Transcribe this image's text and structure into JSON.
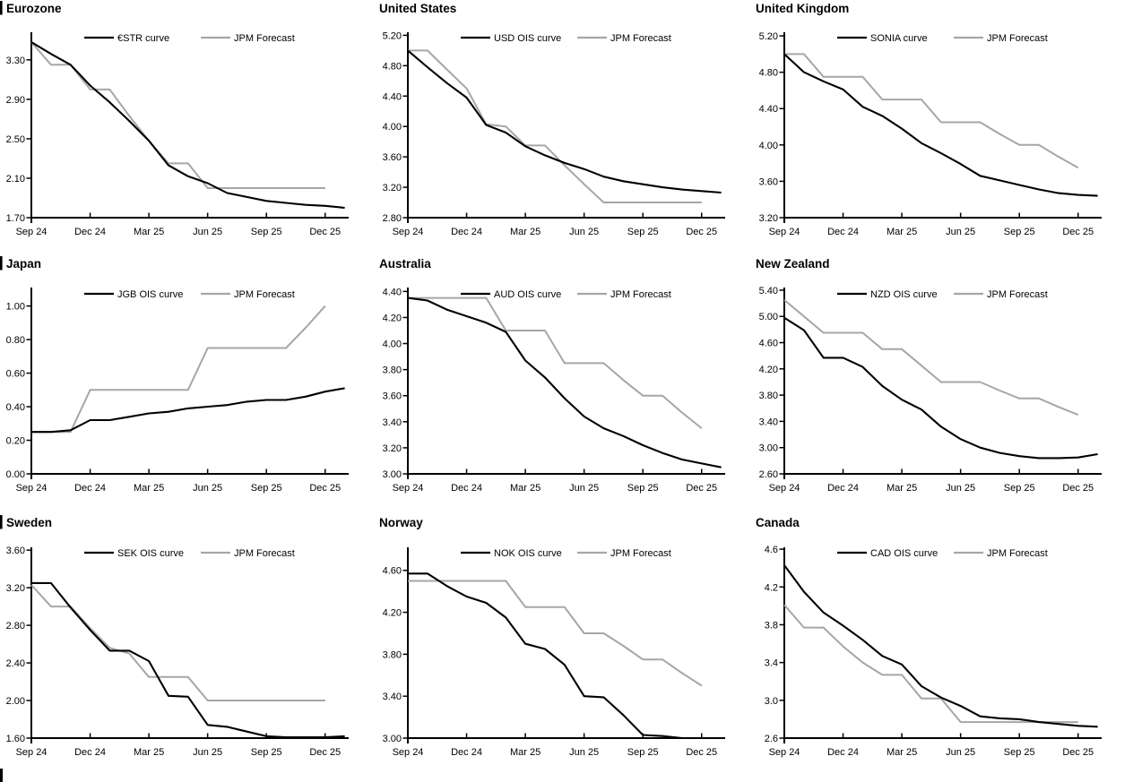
{
  "page": {
    "background": "#ffffff"
  },
  "colors": {
    "line_primary": "#000000",
    "line_forecast": "#a6a6a6",
    "text": "#000000"
  },
  "forecast_label": "JPM Forecast",
  "x_axis_note": "monthly points from Sep 2024 to Dec 2025 plus one extension month",
  "chart_data": [
    {
      "type": "line",
      "title": "Eurozone",
      "left_bar": true,
      "x_ticks": [
        "Sep 24",
        "Dec 24",
        "Mar 25",
        "Jun 25",
        "Sep 25",
        "Dec 25"
      ],
      "y_ticks": [
        "3.30",
        "2.90",
        "2.50",
        "2.10",
        "1.70"
      ],
      "y_tick_values": [
        3.3,
        2.9,
        2.5,
        2.1,
        1.7
      ],
      "ylim": [
        1.7,
        3.58
      ],
      "grid": false,
      "legend_position": "top-inside",
      "series": [
        {
          "name": "€STR curve",
          "color": "#000000",
          "values": [
            3.48,
            3.36,
            3.25,
            3.04,
            2.87,
            2.68,
            2.48,
            2.23,
            2.12,
            2.05,
            1.95,
            1.91,
            1.87,
            1.85,
            1.83,
            1.82,
            1.8
          ]
        },
        {
          "name": "JPM Forecast",
          "color": "#a6a6a6",
          "values": [
            3.48,
            3.25,
            3.25,
            3.0,
            3.0,
            2.73,
            2.48,
            2.25,
            2.25,
            2.0,
            2.0,
            2.0,
            2.0,
            2.0,
            2.0,
            2.0
          ]
        }
      ]
    },
    {
      "type": "line",
      "title": "United States",
      "left_bar": false,
      "x_ticks": [
        "Sep 24",
        "Dec 24",
        "Mar 25",
        "Jun 25",
        "Sep 25",
        "Dec 25"
      ],
      "y_ticks": [
        "5.20",
        "4.80",
        "4.40",
        "4.00",
        "3.60",
        "3.20",
        "2.80"
      ],
      "y_tick_values": [
        5.2,
        4.8,
        4.4,
        4.0,
        3.6,
        3.2,
        2.8
      ],
      "ylim": [
        2.8,
        5.24
      ],
      "grid": false,
      "legend_position": "top-inside",
      "series": [
        {
          "name": "USD OIS curve",
          "color": "#000000",
          "values": [
            5.0,
            4.78,
            4.57,
            4.38,
            4.02,
            3.92,
            3.74,
            3.62,
            3.52,
            3.44,
            3.34,
            3.28,
            3.24,
            3.2,
            3.17,
            3.15,
            3.13
          ]
        },
        {
          "name": "JPM Forecast",
          "color": "#a6a6a6",
          "values": [
            5.0,
            5.0,
            4.75,
            4.5,
            4.03,
            4.0,
            3.75,
            3.75,
            3.49,
            3.24,
            3.0,
            3.0,
            3.0,
            3.0,
            3.0,
            3.0
          ]
        }
      ]
    },
    {
      "type": "line",
      "title": "United Kingdom",
      "left_bar": false,
      "x_ticks": [
        "Sep 24",
        "Dec 24",
        "Mar 25",
        "Jun 25",
        "Sep 25",
        "Dec 25"
      ],
      "y_ticks": [
        "5.20",
        "4.80",
        "4.40",
        "4.00",
        "3.60",
        "3.20"
      ],
      "y_tick_values": [
        5.2,
        4.8,
        4.4,
        4.0,
        3.6,
        3.2
      ],
      "ylim": [
        3.2,
        5.24
      ],
      "grid": false,
      "legend_position": "top-inside",
      "series": [
        {
          "name": "SONIA curve",
          "color": "#000000",
          "values": [
            5.0,
            4.8,
            4.7,
            4.61,
            4.42,
            4.32,
            4.18,
            4.02,
            3.91,
            3.79,
            3.66,
            3.61,
            3.56,
            3.51,
            3.47,
            3.45,
            3.44
          ]
        },
        {
          "name": "JPM Forecast",
          "color": "#a6a6a6",
          "values": [
            5.0,
            5.0,
            4.75,
            4.75,
            4.75,
            4.5,
            4.5,
            4.5,
            4.25,
            4.25,
            4.25,
            4.12,
            4.0,
            4.0,
            3.87,
            3.75
          ]
        }
      ]
    },
    {
      "type": "line",
      "title": "Japan",
      "left_bar": true,
      "x_ticks": [
        "Sep 24",
        "Dec 24",
        "Mar 25",
        "Jun 25",
        "Sep 25",
        "Dec 25"
      ],
      "y_ticks": [
        "1.00",
        "0.80",
        "0.60",
        "0.40",
        "0.20",
        "0.00"
      ],
      "y_tick_values": [
        1.0,
        0.8,
        0.6,
        0.4,
        0.2,
        0.0
      ],
      "ylim": [
        0.0,
        1.11
      ],
      "grid": false,
      "legend_position": "top-inside",
      "series": [
        {
          "name": "JGB OIS curve",
          "color": "#000000",
          "values": [
            0.25,
            0.25,
            0.26,
            0.32,
            0.32,
            0.34,
            0.36,
            0.37,
            0.39,
            0.4,
            0.41,
            0.43,
            0.44,
            0.44,
            0.46,
            0.49,
            0.51
          ]
        },
        {
          "name": "JPM Forecast",
          "color": "#a6a6a6",
          "values": [
            0.25,
            0.25,
            0.25,
            0.5,
            0.5,
            0.5,
            0.5,
            0.5,
            0.5,
            0.75,
            0.75,
            0.75,
            0.75,
            0.75,
            0.87,
            1.0
          ]
        }
      ]
    },
    {
      "type": "line",
      "title": "Australia",
      "left_bar": false,
      "x_ticks": [
        "Sep 24",
        "Dec 24",
        "Mar 25",
        "Jun 25",
        "Sep 25",
        "Dec 25"
      ],
      "y_ticks": [
        "4.40",
        "4.20",
        "4.00",
        "3.80",
        "3.60",
        "3.40",
        "3.20",
        "3.00"
      ],
      "y_tick_values": [
        4.4,
        4.2,
        4.0,
        3.8,
        3.6,
        3.4,
        3.2,
        3.0
      ],
      "ylim": [
        3.0,
        4.43
      ],
      "grid": false,
      "legend_position": "top-inside",
      "series": [
        {
          "name": "AUD OIS curve",
          "color": "#000000",
          "values": [
            4.35,
            4.33,
            4.26,
            4.21,
            4.16,
            4.09,
            3.87,
            3.74,
            3.58,
            3.44,
            3.35,
            3.29,
            3.22,
            3.16,
            3.11,
            3.08,
            3.05
          ]
        },
        {
          "name": "JPM Forecast",
          "color": "#a6a6a6",
          "values": [
            4.35,
            4.35,
            4.35,
            4.35,
            4.35,
            4.1,
            4.1,
            4.1,
            3.85,
            3.85,
            3.85,
            3.72,
            3.6,
            3.6,
            3.47,
            3.35
          ]
        }
      ]
    },
    {
      "type": "line",
      "title": "New Zealand",
      "left_bar": false,
      "x_ticks": [
        "Sep 24",
        "Dec 24",
        "Mar 25",
        "Jun 25",
        "Sep 25",
        "Dec 25"
      ],
      "y_ticks": [
        "5.40",
        "5.00",
        "4.60",
        "4.20",
        "3.80",
        "3.40",
        "3.00",
        "2.60"
      ],
      "y_tick_values": [
        5.4,
        5.0,
        4.6,
        4.2,
        3.8,
        3.4,
        3.0,
        2.6
      ],
      "ylim": [
        2.6,
        5.44
      ],
      "grid": false,
      "legend_position": "top-inside",
      "series": [
        {
          "name": "NZD OIS curve",
          "color": "#000000",
          "values": [
            4.98,
            4.79,
            4.37,
            4.37,
            4.23,
            3.94,
            3.73,
            3.58,
            3.32,
            3.13,
            3.0,
            2.92,
            2.87,
            2.84,
            2.84,
            2.85,
            2.9
          ]
        },
        {
          "name": "JPM Forecast",
          "color": "#a6a6a6",
          "values": [
            5.25,
            5.0,
            4.75,
            4.75,
            4.75,
            4.5,
            4.5,
            4.25,
            4.0,
            4.0,
            4.0,
            3.87,
            3.75,
            3.75,
            3.62,
            3.5
          ]
        }
      ]
    },
    {
      "type": "line",
      "title": "Sweden",
      "left_bar": true,
      "x_ticks": [
        "Sep 24",
        "Dec 24",
        "Mar 25",
        "Jun 25",
        "Sep 25",
        "Dec 25"
      ],
      "y_ticks": [
        "3.60",
        "3.20",
        "2.80",
        "2.40",
        "2.00",
        "1.60"
      ],
      "y_tick_values": [
        3.6,
        3.2,
        2.8,
        2.4,
        2.0,
        1.6
      ],
      "ylim": [
        1.6,
        3.63
      ],
      "grid": false,
      "legend_position": "top-inside",
      "series": [
        {
          "name": "SEK OIS curve",
          "color": "#000000",
          "values": [
            3.25,
            3.25,
            2.99,
            2.75,
            2.53,
            2.53,
            2.42,
            2.05,
            2.04,
            1.74,
            1.72,
            1.67,
            1.62,
            1.61,
            1.61,
            1.61,
            1.62
          ]
        },
        {
          "name": "JPM Forecast",
          "color": "#a6a6a6",
          "values": [
            3.23,
            3.0,
            3.0,
            2.77,
            2.56,
            2.5,
            2.25,
            2.25,
            2.25,
            2.0,
            2.0,
            2.0,
            2.0,
            2.0,
            2.0,
            2.0
          ]
        }
      ]
    },
    {
      "type": "line",
      "title": "Norway",
      "left_bar": false,
      "x_ticks": [
        "Sep 24",
        "Dec 24",
        "Mar 25",
        "Jun 25",
        "Sep 25",
        "Dec 25"
      ],
      "y_ticks": [
        "4.60",
        "4.20",
        "3.80",
        "3.40",
        "3.00"
      ],
      "y_tick_values": [
        4.6,
        4.2,
        3.8,
        3.4,
        3.0
      ],
      "ylim": [
        3.0,
        4.82
      ],
      "grid": false,
      "legend_position": "top-inside",
      "series": [
        {
          "name": "NOK OIS curve",
          "color": "#000000",
          "values": [
            4.57,
            4.57,
            4.45,
            4.35,
            4.29,
            4.15,
            3.9,
            3.85,
            3.7,
            3.4,
            3.39,
            3.22,
            3.03,
            3.02,
            3.0,
            3.0,
            3.0
          ]
        },
        {
          "name": "JPM Forecast",
          "color": "#a6a6a6",
          "values": [
            4.5,
            4.5,
            4.5,
            4.5,
            4.5,
            4.5,
            4.25,
            4.25,
            4.25,
            4.0,
            4.0,
            3.88,
            3.75,
            3.75,
            3.62,
            3.5
          ]
        }
      ]
    },
    {
      "type": "line",
      "title": "Canada",
      "left_bar": false,
      "x_ticks": [
        "Sep 24",
        "Dec 24",
        "Mar 25",
        "Jun 25",
        "Sep 25",
        "Dec 25"
      ],
      "y_ticks": [
        "4.6",
        "4.2",
        "3.8",
        "3.4",
        "3.0",
        "2.6"
      ],
      "y_tick_values": [
        4.6,
        4.2,
        3.8,
        3.4,
        3.0,
        2.6
      ],
      "ylim": [
        2.6,
        4.62
      ],
      "grid": false,
      "legend_position": "top-inside",
      "series": [
        {
          "name": "CAD OIS curve",
          "color": "#000000",
          "values": [
            4.43,
            4.15,
            3.93,
            3.79,
            3.64,
            3.47,
            3.38,
            3.15,
            3.03,
            2.94,
            2.83,
            2.81,
            2.8,
            2.77,
            2.75,
            2.73,
            2.72
          ]
        },
        {
          "name": "JPM Forecast",
          "color": "#a6a6a6",
          "values": [
            4.01,
            3.77,
            3.77,
            3.57,
            3.4,
            3.27,
            3.27,
            3.02,
            3.02,
            2.77,
            2.77,
            2.77,
            2.77,
            2.77,
            2.77,
            2.77
          ]
        }
      ]
    }
  ]
}
